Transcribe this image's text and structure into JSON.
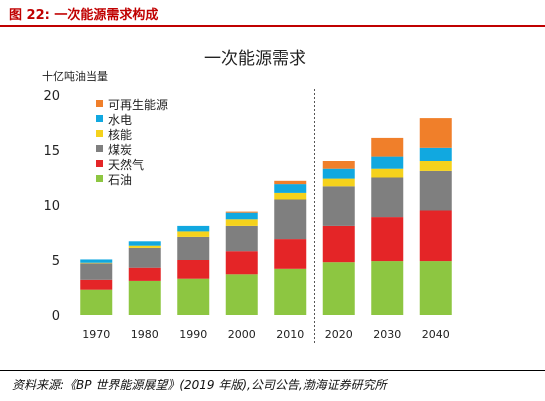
{
  "header": {
    "caption": "图 22:  一次能源需求构成"
  },
  "footer": {
    "source": "资料来源:《BP 世界能源展望》(2019 年版),公司公告,渤海证券研究所"
  },
  "colors": {
    "accent": "#c00000",
    "renewables": "#f07f2a",
    "hydro": "#11a8e0",
    "nuclear": "#f5d21c",
    "coal": "#7f7f7f",
    "gas": "#e42527",
    "oil": "#8dc641"
  },
  "chart_data": {
    "type": "bar",
    "stacked": true,
    "title": "一次能源需求",
    "unit_label": "十亿吨油当量",
    "xlabel": "",
    "ylabel": "十亿吨油当量",
    "ylim": [
      0,
      20
    ],
    "yticks": [
      0,
      5,
      10,
      15,
      20
    ],
    "categories": [
      "1970",
      "1980",
      "1990",
      "2000",
      "2010",
      "2020",
      "2030",
      "2040"
    ],
    "forecast_divider_after": "2010",
    "legend_position": "top-right",
    "grid": false,
    "series": [
      {
        "name": "石油",
        "color": "#8dc641",
        "values": [
          2.3,
          3.1,
          3.3,
          3.7,
          4.2,
          4.8,
          4.9,
          4.9
        ]
      },
      {
        "name": "天然气",
        "color": "#e42527",
        "values": [
          0.9,
          1.2,
          1.7,
          2.1,
          2.7,
          3.3,
          4.0,
          4.6
        ]
      },
      {
        "name": "煤炭",
        "color": "#7f7f7f",
        "values": [
          1.5,
          1.8,
          2.1,
          2.3,
          3.6,
          3.6,
          3.6,
          3.6
        ]
      },
      {
        "name": "核能",
        "color": "#f5d21c",
        "values": [
          0.05,
          0.2,
          0.5,
          0.6,
          0.6,
          0.7,
          0.8,
          0.9
        ]
      },
      {
        "name": "水电",
        "color": "#11a8e0",
        "values": [
          0.3,
          0.4,
          0.5,
          0.6,
          0.8,
          0.9,
          1.1,
          1.2
        ]
      },
      {
        "name": "可再生能源",
        "color": "#f07f2a",
        "values": [
          0.0,
          0.0,
          0.0,
          0.1,
          0.3,
          0.7,
          1.7,
          2.7
        ]
      }
    ]
  }
}
